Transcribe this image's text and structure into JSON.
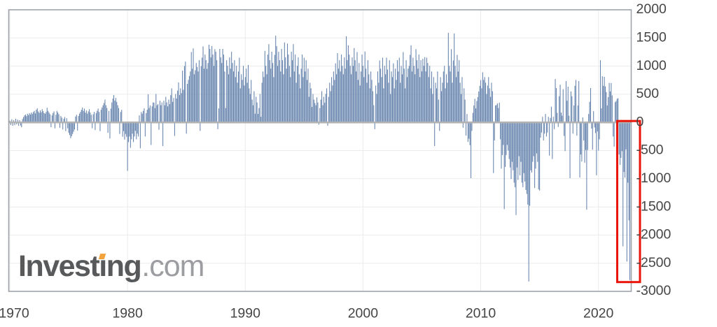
{
  "page": {
    "background": "#ffffff"
  },
  "logo": {
    "part1": "Invest",
    "part2": "ı",
    "part3": "ng",
    "suffix": ".com",
    "main_color": "#58595b",
    "com_color": "#9b9da0",
    "dot_color": "#f2a33c"
  },
  "chart_data": {
    "type": "bar",
    "title": "",
    "x_axis": {
      "tick_labels": [
        "1970",
        "1980",
        "1990",
        "2000",
        "2010",
        "2020"
      ],
      "tick_years": [
        1970,
        1980,
        1990,
        2000,
        2010,
        2020
      ]
    },
    "y_axis": {
      "side": "right",
      "tick_labels": [
        "2000",
        "1500",
        "1000",
        "500",
        "0",
        "-500",
        "-1000",
        "-1500",
        "-2000",
        "-2500",
        "-3000"
      ],
      "tick_values": [
        2000,
        1500,
        1000,
        500,
        0,
        -500,
        -1000,
        -1500,
        -2000,
        -2500,
        -3000
      ],
      "min": -3000,
      "max": 2000
    },
    "grid": true,
    "legend": "none",
    "bar_color": "#6583ad",
    "zero_line_color": "#b2b2b2",
    "grid_color": "#ebebeb",
    "border_color": "#9fa3a8",
    "label_color": "#454545",
    "frequency": "monthly",
    "x_start": "1970-01",
    "x_end": "2022-09",
    "values": [
      30,
      -45,
      55,
      -60,
      40,
      -50,
      65,
      -35,
      50,
      -60,
      40,
      -55,
      -85,
      60,
      95,
      125,
      140,
      110,
      155,
      130,
      165,
      140,
      175,
      150,
      185,
      205,
      160,
      225,
      250,
      195,
      170,
      215,
      180,
      235,
      200,
      165,
      155,
      185,
      260,
      205,
      175,
      145,
      -85,
      125,
      165,
      195,
      -105,
      135,
      205,
      175,
      145,
      -95,
      115,
      85,
      -125,
      65,
      95,
      -155,
      75,
      -105,
      -185,
      -225,
      -280,
      -245,
      -205,
      -165,
      -125,
      105,
      135,
      -145,
      115,
      155,
      185,
      225,
      265,
      205,
      245,
      175,
      215,
      155,
      195,
      235,
      175,
      135,
      -105,
      145,
      185,
      -135,
      165,
      205,
      245,
      185,
      -155,
      225,
      265,
      305,
      345,
      405,
      305,
      255,
      -185,
      205,
      -285,
      245,
      355,
      425,
      485,
      385,
      435,
      365,
      305,
      255,
      -205,
      185,
      225,
      -255,
      -155,
      -305,
      -205,
      -255,
      -860,
      -350,
      -250,
      -450,
      -300,
      -200,
      -350,
      -250,
      -150,
      -300,
      -200,
      -250,
      125,
      -460,
      185,
      155,
      205,
      250,
      -250,
      165,
      225,
      500,
      255,
      300,
      -400,
      285,
      355,
      350,
      255,
      505,
      305,
      325,
      -130,
      385,
      305,
      355,
      -420,
      385,
      305,
      455,
      355,
      285,
      405,
      325,
      485,
      605,
      365,
      435,
      -240,
      505,
      425,
      565,
      710,
      485,
      605,
      520,
      920,
      580,
      1000,
      1080,
      -200,
      685,
      755,
      825,
      905,
      1250,
      955,
      1315,
      855,
      925,
      1055,
      985,
      905,
      1105,
      -150,
      1000,
      1150,
      1350,
      955,
      1205,
      1105,
      950,
      1055,
      1380,
      1305,
      1155,
      1355,
      1205,
      1005,
      1300,
      1255,
      1105,
      -120,
      250,
      1305,
      1155,
      1055,
      1305,
      1205,
      905,
      255,
      1105,
      1005,
      855,
      1155,
      955,
      1255,
      1055,
      905,
      1105,
      805,
      1005,
      705,
      905,
      1150,
      605,
      855,
      755,
      1005,
      655,
      805,
      955,
      705,
      1020,
      605,
      505,
      755,
      405,
      305,
      555,
      155,
      455,
      355,
      150,
      255,
      505,
      100,
      705,
      905,
      805,
      1270,
      1005,
      855,
      1205,
      1390,
      1105,
      955,
      1255,
      1055,
      805,
      1200,
      1540,
      1355,
      1005,
      1255,
      1105,
      905,
      1305,
      1105,
      855,
      1420,
      1155,
      955,
      1400,
      1205,
      1005,
      805,
      1255,
      1105,
      1390,
      905,
      1205,
      705,
      1005,
      1155,
      855,
      605,
      955,
      1205,
      805,
      1150,
      905,
      1105,
      755,
      955,
      455,
      705,
      605,
      275,
      505,
      405,
      345,
      305,
      445,
      355,
      -40,
      255,
      405,
      555,
      305,
      455,
      350,
      505,
      605,
      -60,
      455,
      705,
      555,
      805,
      655,
      905,
      755,
      1050,
      855,
      1230,
      955,
      1105,
      905,
      1205,
      1005,
      855,
      1155,
      955,
      1530,
      1105,
      1370,
      1205,
      1005,
      855,
      1155,
      1005,
      1320,
      1105,
      905,
      1250,
      755,
      1055,
      655,
      905,
      1205,
      1005,
      805,
      1260,
      955,
      705,
      1105,
      855,
      605,
      905,
      755,
      555,
      305,
      -120,
      655,
      505,
      905,
      705,
      1100,
      955,
      805,
      1150,
      605,
      1005,
      855,
      1150,
      940,
      705,
      1105,
      505,
      905,
      805,
      1050,
      605,
      955,
      755,
      1105,
      905,
      1150,
      705,
      1005,
      855,
      1250,
      955,
      605,
      1105,
      805,
      955,
      1005,
      1200,
      1370,
      905,
      1150,
      1005,
      855,
      1300,
      1105,
      955,
      1205,
      805,
      1105,
      905,
      1130,
      1005,
      1160,
      905,
      1150,
      1055,
      805,
      1005,
      605,
      905,
      505,
      805,
      -420,
      705,
      605,
      905,
      405,
      -150,
      805,
      555,
      705,
      905,
      1005,
      605,
      855,
      705,
      1590,
      1005,
      905,
      1300,
      705,
      1100,
      1580,
      1005,
      805,
      1200,
      905,
      1105,
      705,
      505,
      805,
      -95,
      605,
      405,
      -235,
      150,
      -345,
      -290,
      -405,
      -990,
      -150,
      170,
      300,
      420,
      250,
      380,
      450,
      550,
      650,
      750,
      605,
      890,
      755,
      805,
      705,
      505,
      655,
      805,
      605,
      455,
      705,
      555,
      -900,
      -320,
      300,
      310,
      340,
      255,
      350,
      -300,
      -820,
      -580,
      -400,
      -1540,
      -790,
      -580,
      -400,
      -500,
      -650,
      -800,
      -1005,
      -700,
      -850,
      -1070,
      -1150,
      -1645,
      -800,
      -1020,
      -600,
      -940,
      -700,
      -1070,
      -1150,
      -900,
      -1050,
      -1200,
      -1270,
      -1460,
      -2825,
      -1480,
      -850,
      -890,
      -700,
      -600,
      -1165,
      -820,
      -550,
      -700,
      -1190,
      -1210,
      -270,
      -180,
      100,
      -320,
      -200,
      150,
      -250,
      -180,
      100,
      -590,
      80,
      280,
      -650,
      100,
      -120,
      770,
      610,
      170,
      -80,
      465,
      670,
      175,
      120,
      590,
      -240,
      -510,
      735,
      385,
      635,
      120,
      -990,
      550,
      465,
      -200,
      300,
      650,
      755,
      -235,
      300,
      735,
      -980,
      -570,
      -695,
      90,
      -320,
      -715,
      -490,
      -1550,
      -490,
      150,
      365,
      610,
      -110,
      -485,
      200,
      -90,
      -190,
      -940,
      -160,
      -500,
      -300,
      1105,
      250,
      820,
      650,
      810,
      640,
      540,
      300,
      450,
      700,
      550,
      700,
      480,
      -250,
      -430,
      360,
      380,
      420,
      430,
      -570,
      -755,
      -630,
      -510,
      -2200,
      -880,
      -980,
      -480,
      -2470,
      -1070,
      -1740,
      -2800
    ],
    "annotation": {
      "type": "rectangle",
      "description": "red box highlighting the deeply negative bars of the final 12 months",
      "color": "#e9140a",
      "covers_from": "2021-10",
      "covers_to": "2022-09",
      "y_top_value": 25,
      "y_bottom_value": -2835
    }
  }
}
